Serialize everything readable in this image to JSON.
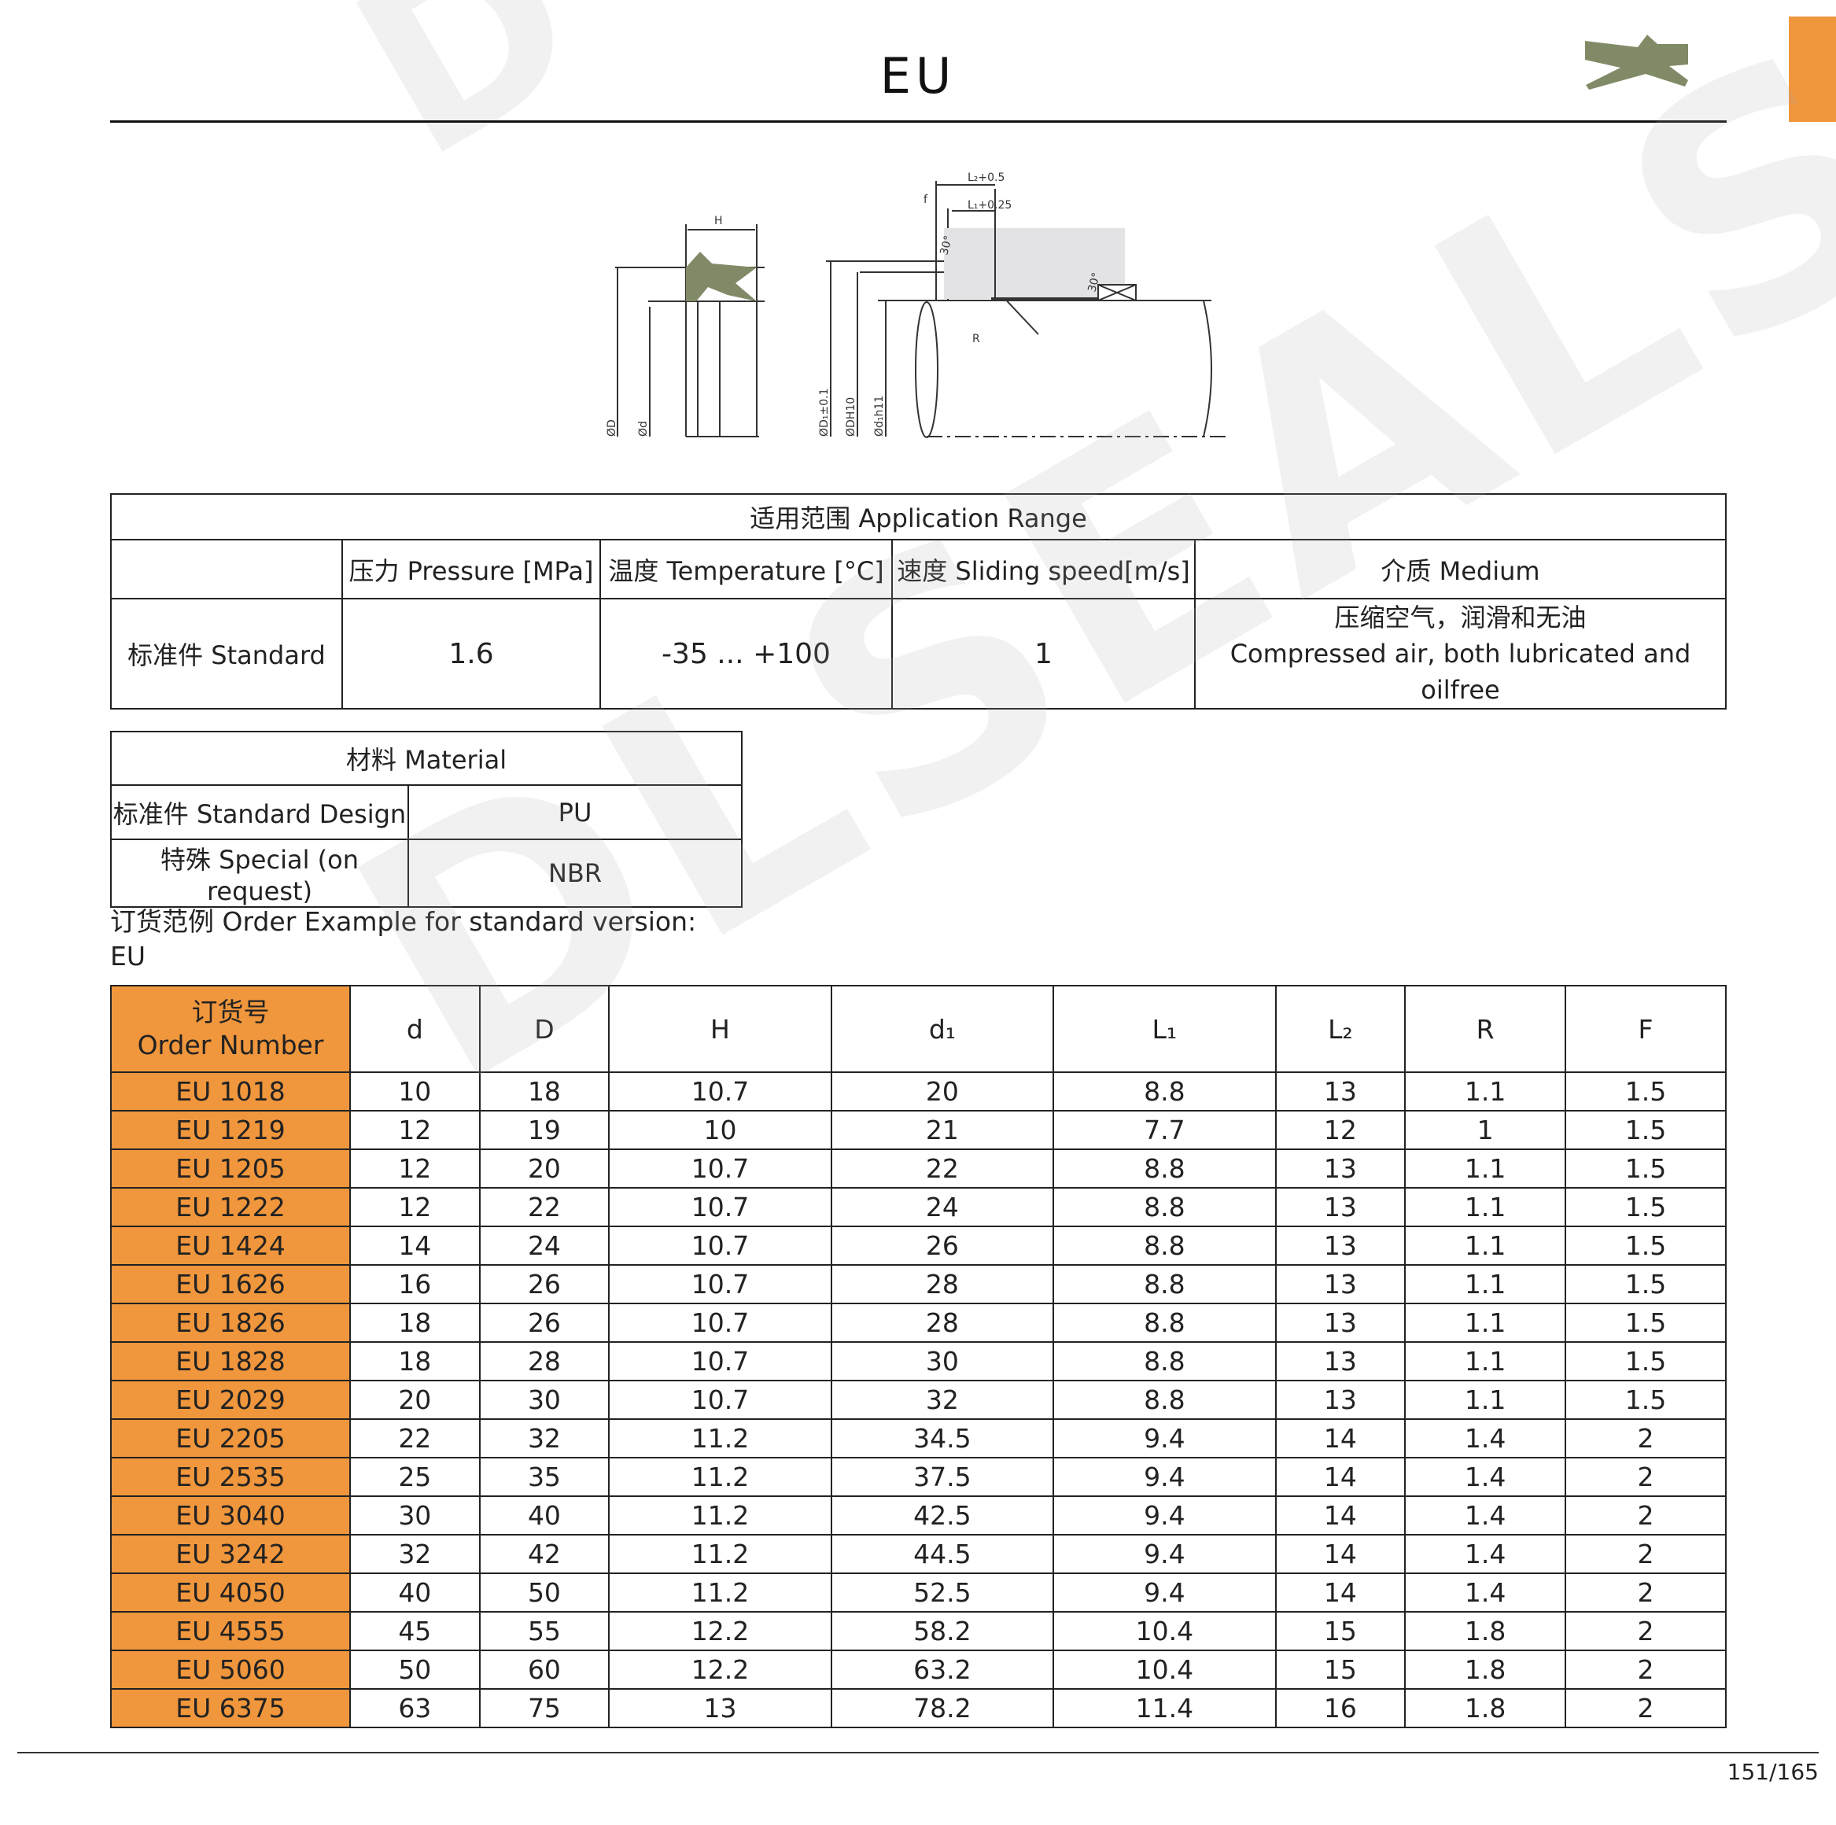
{
  "header": {
    "title": "EU",
    "accent": "#f0963c",
    "seal_color": "#818a66"
  },
  "watermark": "DLSEALS",
  "diagram": {
    "labels": {
      "H": "H",
      "D": "ØD",
      "d": "Ød",
      "D1": "ØD₁±0.1",
      "DH10": "ØDH10",
      "d1": "Ød₁h11",
      "L2": "L₂+0.5",
      "L1": "L₁+0.25",
      "f": "f",
      "R": "R",
      "angle1": "30°",
      "angle2": "30°"
    }
  },
  "application": {
    "title": "适用范围 Application Range",
    "headers": [
      "",
      "压力 Pressure [MPa]",
      "温度 Temperature  [°C]",
      "速度 Sliding speed[m/s]",
      "介质 Medium"
    ],
    "row": {
      "label": "标准件 Standard",
      "pressure": "1.6",
      "temperature": "-35 ... +100",
      "speed": "1",
      "medium_cn": "压缩空气，润滑和无油",
      "medium_en": "Compressed air, both lubricated and oilfree"
    }
  },
  "material": {
    "title": "材料 Material",
    "rows": [
      {
        "label": "标准件 Standard Design",
        "value": "PU"
      },
      {
        "label": "特殊 Special (on request)",
        "value": "NBR"
      }
    ]
  },
  "order_example": {
    "line1": "订货范例 Order Example for standard version:",
    "line2": "EU"
  },
  "table": {
    "headers": {
      "order_cn": "订货号",
      "order_en": "Order Number",
      "cols": [
        "d",
        "D",
        "H",
        "d₁",
        "L₁",
        "L₂",
        "R",
        "F"
      ]
    },
    "rows": [
      [
        "EU 1018",
        "10",
        "18",
        "10.7",
        "20",
        "8.8",
        "13",
        "1.1",
        "1.5"
      ],
      [
        "EU 1219",
        "12",
        "19",
        "10",
        "21",
        "7.7",
        "12",
        "1",
        "1.5"
      ],
      [
        "EU 1205",
        "12",
        "20",
        "10.7",
        "22",
        "8.8",
        "13",
        "1.1",
        "1.5"
      ],
      [
        "EU 1222",
        "12",
        "22",
        "10.7",
        "24",
        "8.8",
        "13",
        "1.1",
        "1.5"
      ],
      [
        "EU 1424",
        "14",
        "24",
        "10.7",
        "26",
        "8.8",
        "13",
        "1.1",
        "1.5"
      ],
      [
        "EU 1626",
        "16",
        "26",
        "10.7",
        "28",
        "8.8",
        "13",
        "1.1",
        "1.5"
      ],
      [
        "EU 1826",
        "18",
        "26",
        "10.7",
        "28",
        "8.8",
        "13",
        "1.1",
        "1.5"
      ],
      [
        "EU 1828",
        "18",
        "28",
        "10.7",
        "30",
        "8.8",
        "13",
        "1.1",
        "1.5"
      ],
      [
        "EU 2029",
        "20",
        "30",
        "10.7",
        "32",
        "8.8",
        "13",
        "1.1",
        "1.5"
      ],
      [
        "EU 2205",
        "22",
        "32",
        "11.2",
        "34.5",
        "9.4",
        "14",
        "1.4",
        "2"
      ],
      [
        "EU 2535",
        "25",
        "35",
        "11.2",
        "37.5",
        "9.4",
        "14",
        "1.4",
        "2"
      ],
      [
        "EU 3040",
        "30",
        "40",
        "11.2",
        "42.5",
        "9.4",
        "14",
        "1.4",
        "2"
      ],
      [
        "EU 3242",
        "32",
        "42",
        "11.2",
        "44.5",
        "9.4",
        "14",
        "1.4",
        "2"
      ],
      [
        "EU 4050",
        "40",
        "50",
        "11.2",
        "52.5",
        "9.4",
        "14",
        "1.4",
        "2"
      ],
      [
        "EU 4555",
        "45",
        "55",
        "12.2",
        "58.2",
        "10.4",
        "15",
        "1.8",
        "2"
      ],
      [
        "EU 5060",
        "50",
        "60",
        "12.2",
        "63.2",
        "10.4",
        "15",
        "1.8",
        "2"
      ],
      [
        "EU 6375",
        "63",
        "75",
        "13",
        "78.2",
        "11.4",
        "16",
        "1.8",
        "2"
      ]
    ]
  },
  "footer": {
    "page": "151/165"
  }
}
